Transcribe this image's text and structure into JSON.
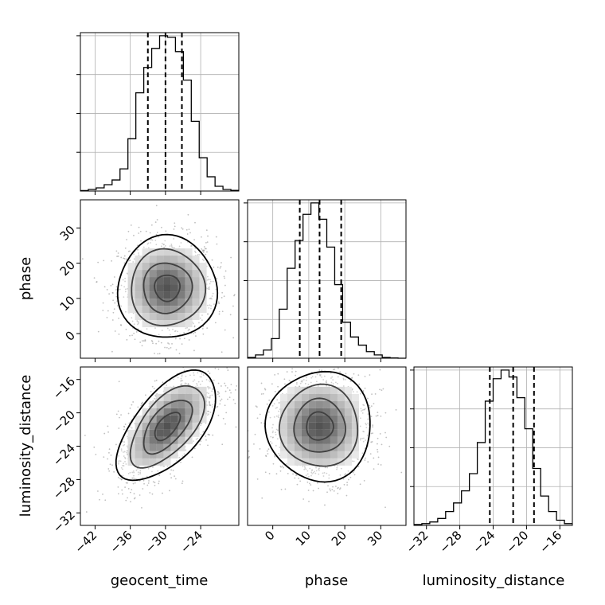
{
  "chart_data": {
    "type": "corner",
    "parameters": [
      "geocent_time",
      "phase",
      "luminosity_distance"
    ],
    "grid": true,
    "quantile_lines": "dashed",
    "marginals": [
      {
        "parameter": "geocent_time",
        "xlim": [
          -44.5,
          -17.5
        ],
        "ticks": [
          -42,
          -36,
          -30,
          -24
        ],
        "tick_labels": [
          "−42",
          "−36",
          "−30",
          "−24"
        ],
        "bins_start": -44.5,
        "bin_width": 1.35,
        "counts": [
          0.3,
          1,
          2,
          4,
          7,
          14,
          33,
          62,
          78,
          90,
          98,
          97,
          88,
          70,
          44,
          21,
          9,
          3,
          1,
          0.4
        ],
        "quantiles": [
          -33,
          -30,
          -27.2
        ]
      },
      {
        "parameter": "phase",
        "xlim": [
          -7,
          37
        ],
        "ticks": [
          0,
          10,
          20,
          30
        ],
        "tick_labels": [
          "0",
          "10",
          "20",
          "30"
        ],
        "bins_start": -7,
        "bin_width": 2.2,
        "counts": [
          0.5,
          2,
          5,
          12,
          30,
          55,
          72,
          88,
          95,
          85,
          68,
          45,
          22,
          13,
          8,
          4,
          2,
          0.5,
          0.2,
          0
        ],
        "quantiles": [
          7.5,
          13,
          19
        ]
      },
      {
        "parameter": "luminosity_distance",
        "xlim": [
          -33.5,
          -14.5
        ],
        "ticks": [
          -32,
          -28,
          -24,
          -20,
          -16
        ],
        "tick_labels": [
          "−32",
          "−28",
          "−24",
          "−20",
          "−16"
        ],
        "bins_start": -33.5,
        "bin_width": 0.95,
        "counts": [
          0.5,
          1,
          2,
          4,
          8,
          13,
          20,
          30,
          48,
          72,
          85,
          90,
          86,
          74,
          56,
          33,
          17,
          8,
          3,
          1
        ],
        "quantiles": [
          -24.4,
          -21.6,
          -19.1
        ]
      }
    ],
    "joint": [
      {
        "x": "geocent_time",
        "y": "phase",
        "xlim": [
          -44.5,
          -17.5
        ],
        "ylim": [
          -7,
          38
        ],
        "yticks": [
          0,
          10,
          20,
          30
        ],
        "ytick_labels": [
          "0",
          "10",
          "20",
          "30"
        ],
        "mean": [
          -29.7,
          13
        ],
        "sigma": [
          3.6,
          6.2
        ],
        "correlation": 0
      },
      {
        "x": "geocent_time",
        "y": "luminosity_distance",
        "xlim": [
          -44.5,
          -17.5
        ],
        "ylim": [
          -33.5,
          -14.5
        ],
        "yticks": [
          -32,
          -28,
          -24,
          -20,
          -16
        ],
        "ytick_labels": [
          "−32",
          "−28",
          "−24",
          "−20",
          "−16"
        ],
        "mean": [
          -29.7,
          -21.6
        ],
        "sigma": [
          3.6,
          2.8
        ],
        "correlation": 0.6
      },
      {
        "x": "phase",
        "y": "luminosity_distance",
        "xlim": [
          -7,
          37
        ],
        "ylim": [
          -33.5,
          -14.5
        ],
        "mean": [
          13,
          -21.6
        ],
        "sigma": [
          6.2,
          2.8
        ],
        "correlation": 0
      }
    ]
  }
}
